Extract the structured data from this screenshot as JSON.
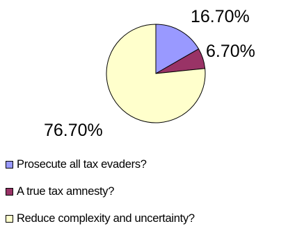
{
  "chart_data": {
    "type": "pie",
    "title": "",
    "categories": [
      "Prosecute all tax evaders?",
      "A true tax amnesty?",
      "Reduce complexity and uncertainty?"
    ],
    "values": [
      16.7,
      6.7,
      76.7
    ],
    "value_labels": [
      "16.70%",
      "6.70%",
      "76.70%"
    ],
    "colors": [
      "#9999ff",
      "#993366",
      "#ffffcc"
    ],
    "start_angle_deg": 0,
    "direction": "clockwise",
    "legend_position": "bottom-left"
  }
}
